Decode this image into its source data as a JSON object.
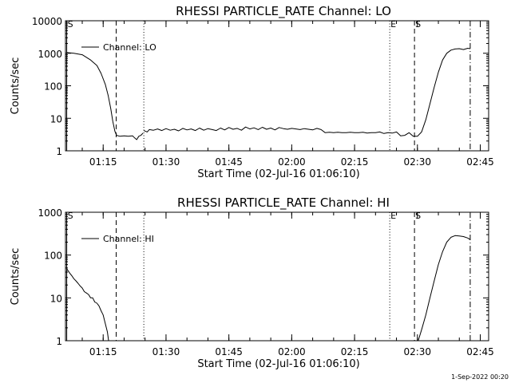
{
  "stamp": "1-Sep-2022 00:20",
  "chart_data": [
    {
      "type": "line",
      "title": "RHESSI PARTICLE_RATE Channel: LO",
      "xlabel": "Start Time (02-Jul-16 01:06:10)",
      "ylabel": "Counts/sec",
      "y_scale": "log",
      "ylim": [
        1,
        10000
      ],
      "xlim_minutes": [
        66,
        167
      ],
      "x_ticks": [
        {
          "minutes": 75,
          "label": "01:15"
        },
        {
          "minutes": 90,
          "label": "01:30"
        },
        {
          "minutes": 105,
          "label": "01:45"
        },
        {
          "minutes": 120,
          "label": "02:00"
        },
        {
          "minutes": 135,
          "label": "02:15"
        },
        {
          "minutes": 150,
          "label": "02:30"
        },
        {
          "minutes": 165,
          "label": "02:45"
        }
      ],
      "y_ticks": [
        {
          "value": 1,
          "label": "1"
        },
        {
          "value": 10,
          "label": "10"
        },
        {
          "value": 100,
          "label": "100"
        },
        {
          "value": 1000,
          "label": "1000"
        },
        {
          "value": 10000,
          "label": "10000"
        }
      ],
      "legend": {
        "label": "Channel: LO",
        "position": "top-left"
      },
      "markers": [
        {
          "minutes": 66.3,
          "style": "solid",
          "label": "S"
        },
        {
          "minutes": 78.1,
          "style": "dashed",
          "label": ""
        },
        {
          "minutes": 84.7,
          "style": "dotted",
          "label": ""
        },
        {
          "minutes": 143.4,
          "style": "dotted",
          "label": "E"
        },
        {
          "minutes": 149.3,
          "style": "dashed",
          "label": "S"
        },
        {
          "minutes": 162.6,
          "style": "dashdot",
          "label": ""
        }
      ],
      "series": [
        {
          "x": [
            66.3,
            68,
            70,
            72,
            73.5,
            74.5,
            75.5,
            76.2,
            76.8,
            77.3,
            77.8,
            78.2,
            79,
            80,
            81,
            82,
            82.5,
            83,
            83.5,
            84,
            84.5
          ],
          "y": [
            1050,
            1000,
            900,
            620,
            420,
            240,
            110,
            50,
            20,
            8,
            4,
            3,
            2.8,
            2.9,
            2.8,
            2.9,
            2.5,
            2.2,
            2.8,
            3,
            3.5
          ]
        },
        {
          "x": [
            84.7,
            85.5,
            86,
            87,
            88,
            89,
            90,
            91,
            92,
            93,
            94,
            95,
            96,
            97,
            98,
            99,
            100,
            101,
            102,
            103,
            104,
            105,
            106,
            107,
            108,
            109,
            110,
            111,
            112,
            113,
            114,
            115,
            116,
            117,
            118,
            119,
            120,
            121,
            122,
            123,
            124,
            125,
            126,
            127,
            128,
            129,
            130,
            131,
            132,
            133,
            134,
            135,
            136,
            137,
            138,
            139,
            140,
            141,
            142,
            143,
            144,
            145,
            146,
            147,
            148,
            149,
            150,
            151,
            152,
            153,
            154,
            155,
            156,
            157,
            158,
            159,
            160,
            161,
            162,
            162.6
          ],
          "y": [
            4.2,
            3.8,
            4.5,
            4.3,
            4.7,
            4.2,
            4.8,
            4.3,
            4.6,
            4.1,
            4.9,
            4.4,
            4.7,
            4.2,
            5.0,
            4.3,
            4.8,
            4.5,
            4.2,
            5.0,
            4.4,
            5.2,
            4.6,
            4.9,
            4.3,
            5.4,
            4.7,
            5.1,
            4.5,
            5.3,
            4.6,
            5.0,
            4.4,
            5.2,
            4.8,
            4.6,
            4.9,
            4.7,
            4.5,
            4.8,
            4.6,
            4.4,
            4.9,
            4.5,
            3.6,
            3.7,
            3.6,
            3.7,
            3.6,
            3.6,
            3.7,
            3.6,
            3.6,
            3.7,
            3.5,
            3.6,
            3.6,
            3.8,
            3.4,
            3.6,
            3.5,
            3.8,
            2.9,
            3.0,
            3.6,
            2.8,
            2.8,
            3.8,
            9,
            28,
            90,
            260,
            620,
            1000,
            1250,
            1350,
            1380,
            1300,
            1420,
            1380
          ]
        }
      ]
    },
    {
      "type": "line",
      "title": "RHESSI PARTICLE_RATE Channel: HI",
      "xlabel": "Start Time (02-Jul-16 01:06:10)",
      "ylabel": "Counts/sec",
      "y_scale": "log",
      "ylim": [
        1,
        1000
      ],
      "xlim_minutes": [
        66,
        167
      ],
      "x_ticks": [
        {
          "minutes": 75,
          "label": "01:15"
        },
        {
          "minutes": 90,
          "label": "01:30"
        },
        {
          "minutes": 105,
          "label": "01:45"
        },
        {
          "minutes": 120,
          "label": "02:00"
        },
        {
          "minutes": 135,
          "label": "02:15"
        },
        {
          "minutes": 150,
          "label": "02:30"
        },
        {
          "minutes": 165,
          "label": "02:45"
        }
      ],
      "y_ticks": [
        {
          "value": 1,
          "label": "1"
        },
        {
          "value": 10,
          "label": "10"
        },
        {
          "value": 100,
          "label": "100"
        },
        {
          "value": 1000,
          "label": "1000"
        }
      ],
      "legend": {
        "label": "Channel: HI",
        "position": "top-left"
      },
      "markers": [
        {
          "minutes": 66.3,
          "style": "solid",
          "label": "S"
        },
        {
          "minutes": 78.1,
          "style": "dashed",
          "label": ""
        },
        {
          "minutes": 84.7,
          "style": "dotted",
          "label": ""
        },
        {
          "minutes": 143.4,
          "style": "dotted",
          "label": "E"
        },
        {
          "minutes": 149.3,
          "style": "dashed",
          "label": "S"
        },
        {
          "minutes": 162.6,
          "style": "dashdot",
          "label": ""
        }
      ],
      "series": [
        {
          "x": [
            66.3,
            67,
            67.5,
            68,
            68.5,
            69,
            69.5,
            70,
            70.5,
            71,
            71.5,
            72,
            72.5,
            73,
            73.5,
            74,
            74.5,
            75,
            75.5,
            76,
            76.3
          ],
          "y": [
            48,
            38,
            33,
            28,
            25,
            22,
            19,
            17,
            14,
            13,
            12,
            10,
            10,
            8,
            7.5,
            6.5,
            5,
            4,
            2.5,
            1.6,
            1
          ]
        },
        {
          "x": [
            150.2,
            151,
            152,
            153,
            154,
            155,
            156,
            157,
            158,
            159,
            160,
            161,
            162,
            162.6
          ],
          "y": [
            1,
            1.8,
            4,
            10,
            25,
            60,
            120,
            200,
            260,
            285,
            280,
            270,
            250,
            230
          ]
        }
      ]
    }
  ]
}
